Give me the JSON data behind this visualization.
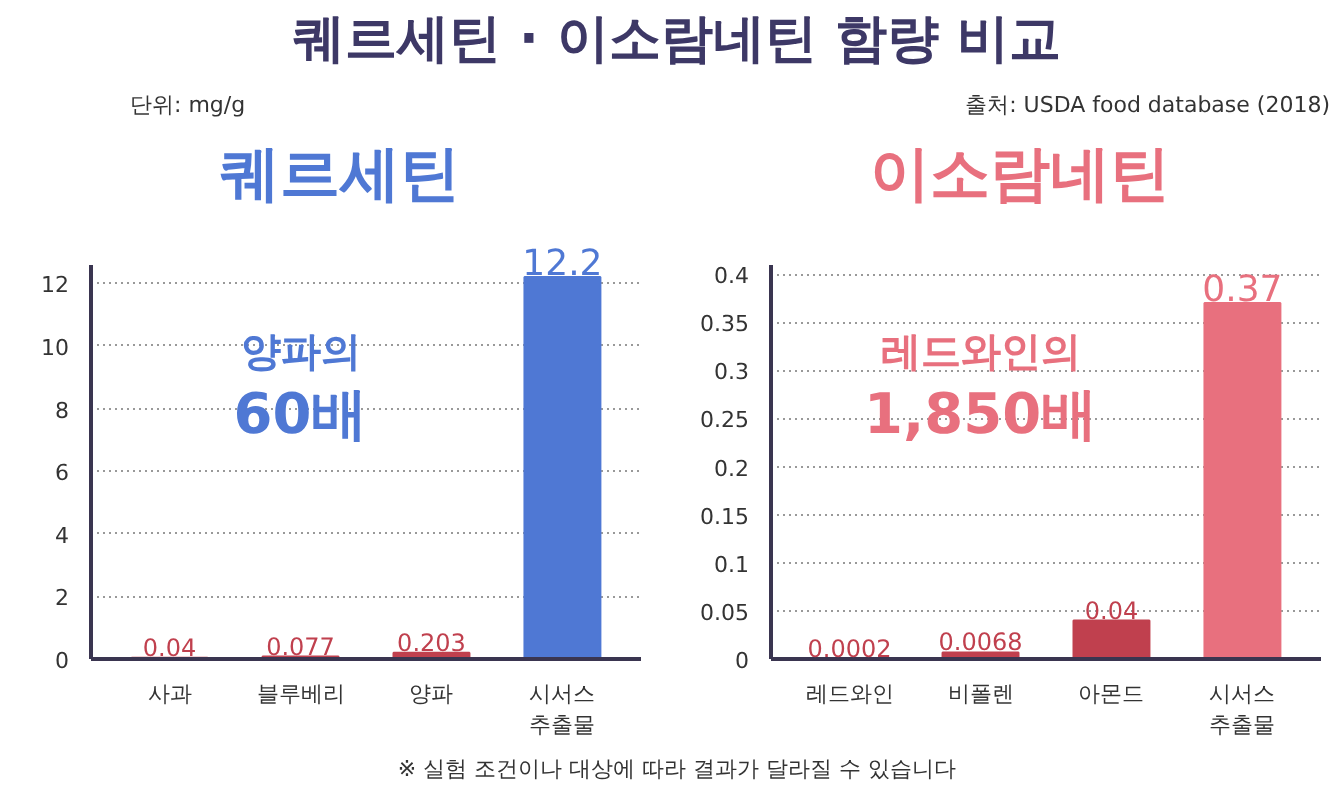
{
  "chart_data": [
    {
      "type": "other",
      "title": "퀘르세틴 · 이소람네틴 함량 비교",
      "subtitle": "단위: mg/g",
      "annotations": [
        "출처: USDA food database (2018)",
        "※ 실험 조건이나 대상에 따라 결과가 달라질 수 있습니다"
      ]
    },
    {
      "type": "bar",
      "title": "퀘르세틴",
      "categories": [
        "사과",
        "블루베리",
        "양파",
        "시서스\n추출물"
      ],
      "values": [
        0.04,
        0.077,
        0.203,
        12.2
      ],
      "colors": [
        "#c0404e",
        "#c0404e",
        "#c0404e",
        "#4f78d4"
      ],
      "ylim": [
        0,
        12.6
      ],
      "yticks": [
        0,
        2,
        4,
        6,
        8,
        10,
        12
      ],
      "grid": "y",
      "data_labels": true,
      "annotations": [
        "양파의\n60배"
      ]
    },
    {
      "type": "bar",
      "title": "이소람네틴",
      "categories": [
        "레드와인",
        "비폴렌",
        "아몬드",
        "시서스\n추출물"
      ],
      "values": [
        0.0002,
        0.0068,
        0.04,
        0.37
      ],
      "colors": [
        "#c0404e",
        "#c0404e",
        "#c0404e",
        "#e8707e"
      ],
      "ylim": [
        0,
        0.41
      ],
      "yticks": [
        0,
        0.05,
        0.1,
        0.15,
        0.2,
        0.25,
        0.3,
        0.35,
        0.4
      ],
      "grid": "y",
      "data_labels": true,
      "annotations": [
        "레드와인의\n1,850배"
      ]
    }
  ]
}
